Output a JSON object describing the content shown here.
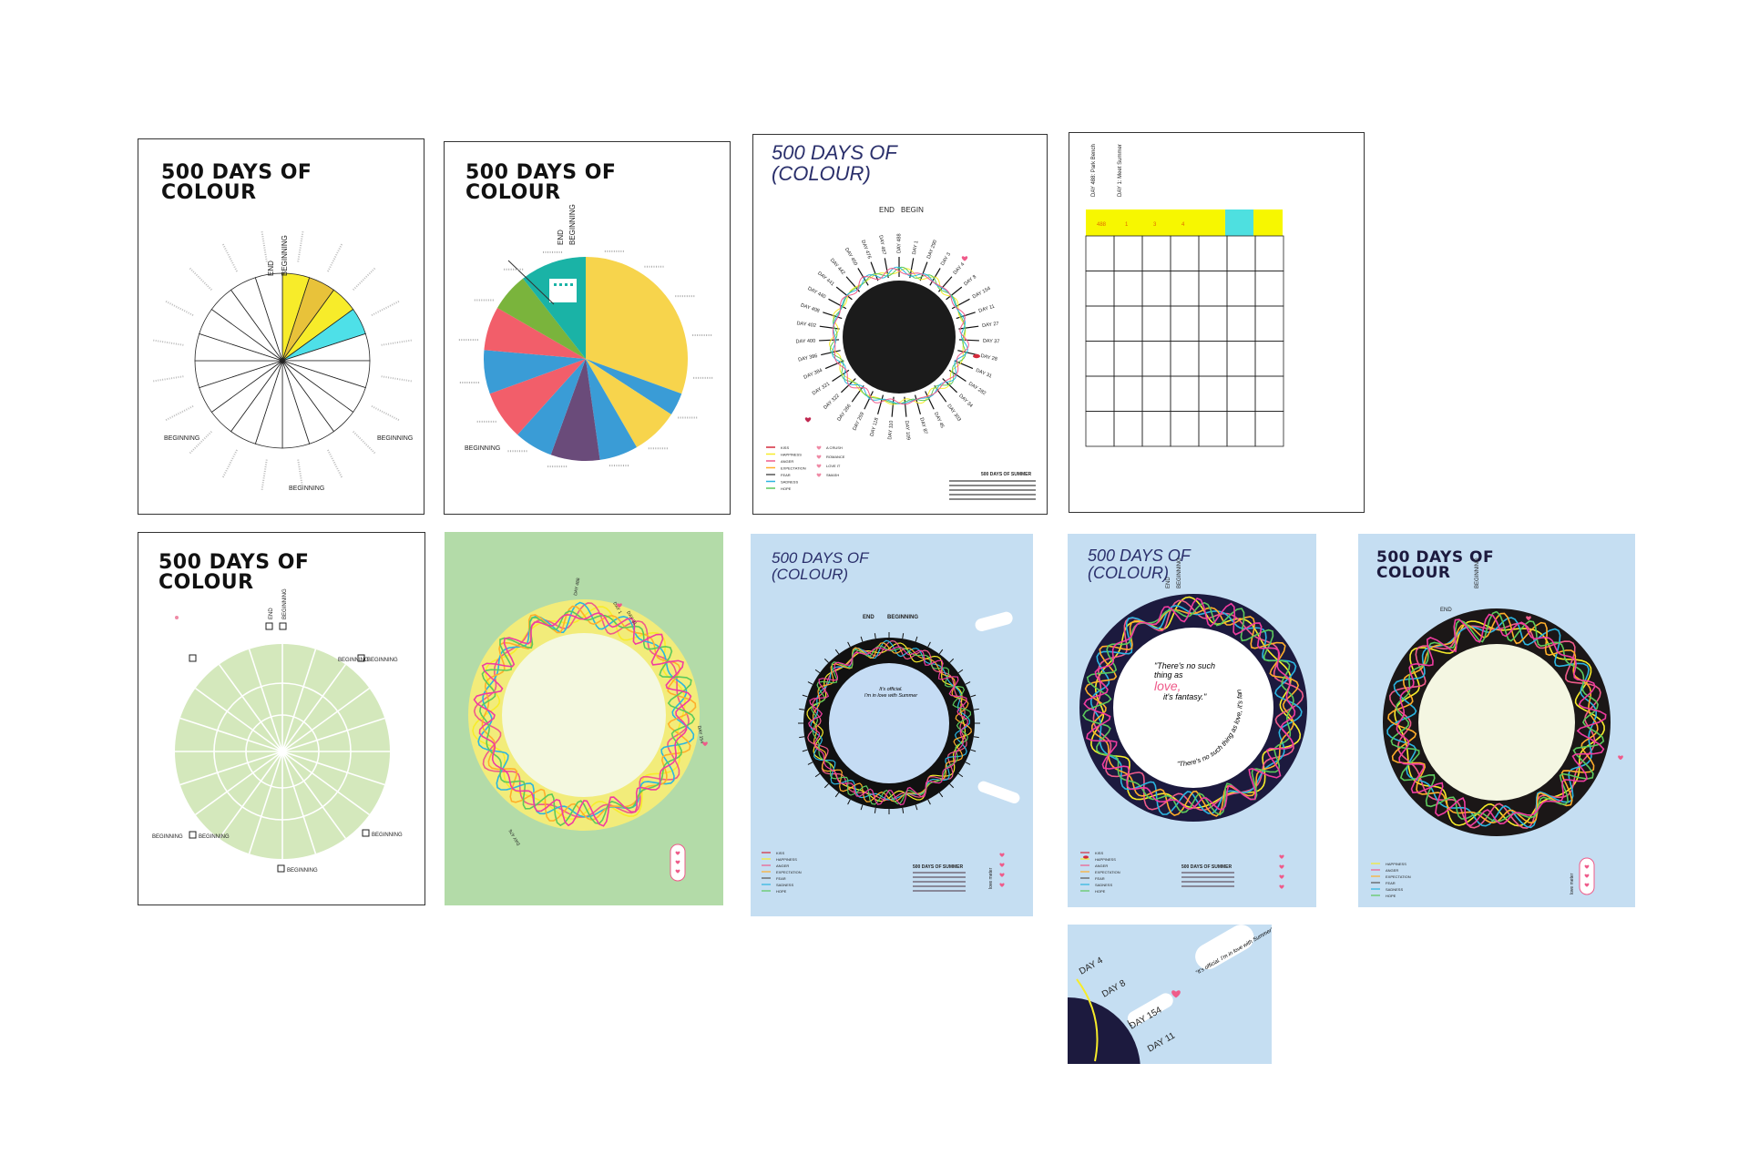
{
  "boards": {
    "b1": {
      "title": "500 DAYS OF\nCOLOUR",
      "labels": [
        "END",
        "BEGINNING",
        "BEGINNING",
        "BEGINNING",
        "BEGINNING"
      ]
    },
    "b2": {
      "title": "500 DAYS OF\nCOLOUR",
      "labels": [
        "END",
        "BEGINNING",
        "BEGINNING"
      ]
    },
    "b3": {
      "title": "500 DAYS OF\n(COLOUR)",
      "top": [
        "END",
        "BEGIN"
      ],
      "days": [
        "DAY 488",
        "DAY 1",
        "DAY 290",
        "DAY 3",
        "DAY 4",
        "DAY 8",
        "DAY 154",
        "DAY 11",
        "DAY 27",
        "DAY 37",
        "DAY 28",
        "DAY 31",
        "DAY 282",
        "DAY 34",
        "DAY 303",
        "DAY 45",
        "DAY 87",
        "DAY 109",
        "DAY 110",
        "DAY 118",
        "DAY 259",
        "DAY 266",
        "DAY 322",
        "DAY 321",
        "DAY 384",
        "DAY 386",
        "DAY 400",
        "DAY 402",
        "DAY 408",
        "DAY 440",
        "DAY 441",
        "DAY 442",
        "DAY 450",
        "DAY 476",
        "DAY 487"
      ],
      "legend_left": [
        "KISS",
        "HAPPINESS",
        "ANGER",
        "EXPECTATION",
        "FEAR",
        "SADNESS",
        "HOPE"
      ],
      "legend_right": [
        "A CRUSH",
        "ROMANCE",
        "LOVE IT",
        "SMASH"
      ],
      "info_title": "500 DAYS OF SUMMER"
    },
    "b4": {
      "headers": [
        "DAY 488: Park Bench",
        "DAY 1: Meet Summer"
      ],
      "cells": [
        "488",
        "1",
        "3",
        "4"
      ]
    },
    "b5": {
      "title": "500 DAYS OF\nCOLOUR",
      "labels": [
        "END",
        "BEGINNING",
        "BEGINNING",
        "BEGINNING",
        "BEGINNING",
        "BEGINNING",
        "BEGINNING"
      ]
    },
    "b6": {
      "days": [
        "DAY 488",
        "DAY 1",
        "DAY 31",
        "DAY 154",
        "DAY 476"
      ]
    },
    "b7": {
      "title": "500 DAYS OF\n(COLOUR)",
      "top": [
        "END",
        "BEGINNING"
      ],
      "quote": "It's official.\nI'm in love with Summer",
      "legend_left": [
        "KISS",
        "HAPPINESS",
        "ANGER",
        "EXPECTATION",
        "FEAR",
        "SADNESS",
        "HOPE"
      ],
      "info_title": "500 DAYS OF SUMMER",
      "vertical": "love meter"
    },
    "b8": {
      "title": "500 DAYS OF\n(COLOUR)",
      "labels": [
        "END",
        "BEGINNING"
      ],
      "quote_pre": "\"There's no such\nthing as",
      "quote_love": "love,",
      "quote_post": "it's fantasy.\"",
      "quote_arc": "\"There's no such thing as love, it's fantasy.\"",
      "legend_left": [
        "KISS",
        "HAPPINESS",
        "ANGER",
        "EXPECTATION",
        "FEAR",
        "SADNESS",
        "HOPE"
      ],
      "info_title": "500 DAYS OF SUMMER"
    },
    "b9": {
      "title": "500 DAYS OF\nCOLOUR",
      "labels": [
        "END",
        "BEGINNING"
      ],
      "legend_left": [
        "HAPPINESS",
        "ANGER",
        "EXPECTATION",
        "FEAR",
        "SADNESS",
        "HOPE"
      ],
      "vertical": "love meter"
    },
    "b10": {
      "days": [
        "DAY 4",
        "DAY 8",
        "DAY 154",
        "DAY 11"
      ],
      "quote": "\"It's official. I'm in love with Summer\""
    }
  },
  "colors": {
    "yellow": "#f7ec2a",
    "cyan": "#4ee0e8",
    "mustard": "#e8c23a",
    "green_bg": "#b3dba8",
    "blue_bg": "#c5def2",
    "navy": "#1c1a3e",
    "pink": "#ef5b8a",
    "pale_green": "#d4e8bc"
  }
}
